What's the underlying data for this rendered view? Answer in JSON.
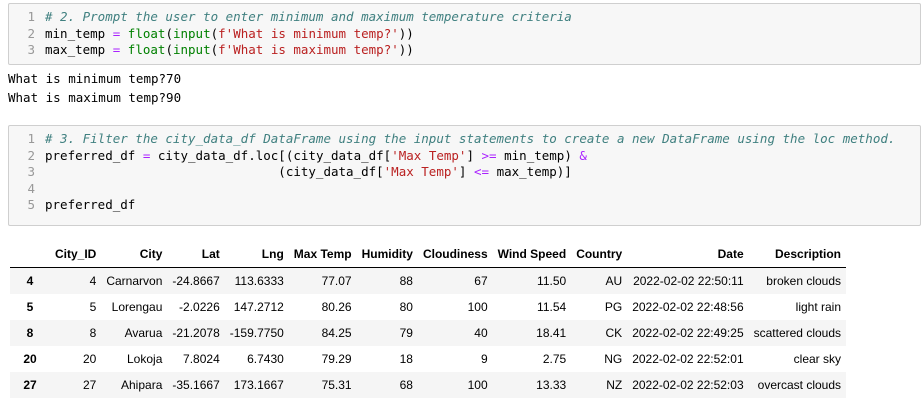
{
  "cells": [
    {
      "code": [
        "# 2. Prompt the user to enter minimum and maximum temperature criteria",
        "min_temp = float(input(f'What is minimum temp?'))",
        "max_temp = float(input(f'What is maximum temp?'))"
      ],
      "output": [
        "What is minimum temp?70",
        "What is maximum temp?90"
      ]
    },
    {
      "code": [
        "# 3. Filter the city_data_df DataFrame using the input statements to create a new DataFrame using the loc method.",
        "preferred_df = city_data_df.loc[(city_data_df['Max Temp'] >= min_temp) &",
        "                               (city_data_df['Max Temp'] <= max_temp)]",
        "",
        "preferred_df"
      ]
    }
  ],
  "table": {
    "columns": [
      "City_ID",
      "City",
      "Lat",
      "Lng",
      "Max Temp",
      "Humidity",
      "Cloudiness",
      "Wind Speed",
      "Country",
      "Date",
      "Description"
    ],
    "rows": [
      [
        "4",
        "4",
        "Carnarvon",
        "-24.8667",
        "113.6333",
        "77.07",
        "88",
        "67",
        "11.50",
        "AU",
        "2022-02-02 22:50:11",
        "broken clouds"
      ],
      [
        "5",
        "5",
        "Lorengau",
        "-2.0226",
        "147.2712",
        "80.26",
        "80",
        "100",
        "11.54",
        "PG",
        "2022-02-02 22:48:56",
        "light rain"
      ],
      [
        "8",
        "8",
        "Avarua",
        "-21.2078",
        "-159.7750",
        "84.25",
        "79",
        "40",
        "18.41",
        "CK",
        "2022-02-02 22:49:25",
        "scattered clouds"
      ],
      [
        "20",
        "20",
        "Lokoja",
        "7.8024",
        "6.7430",
        "79.29",
        "18",
        "9",
        "2.75",
        "NG",
        "2022-02-02 22:52:01",
        "clear sky"
      ],
      [
        "27",
        "27",
        "Ahipara",
        "-35.1667",
        "173.1667",
        "75.31",
        "68",
        "100",
        "13.33",
        "NZ",
        "2022-02-02 22:52:03",
        "overcast clouds"
      ]
    ]
  }
}
